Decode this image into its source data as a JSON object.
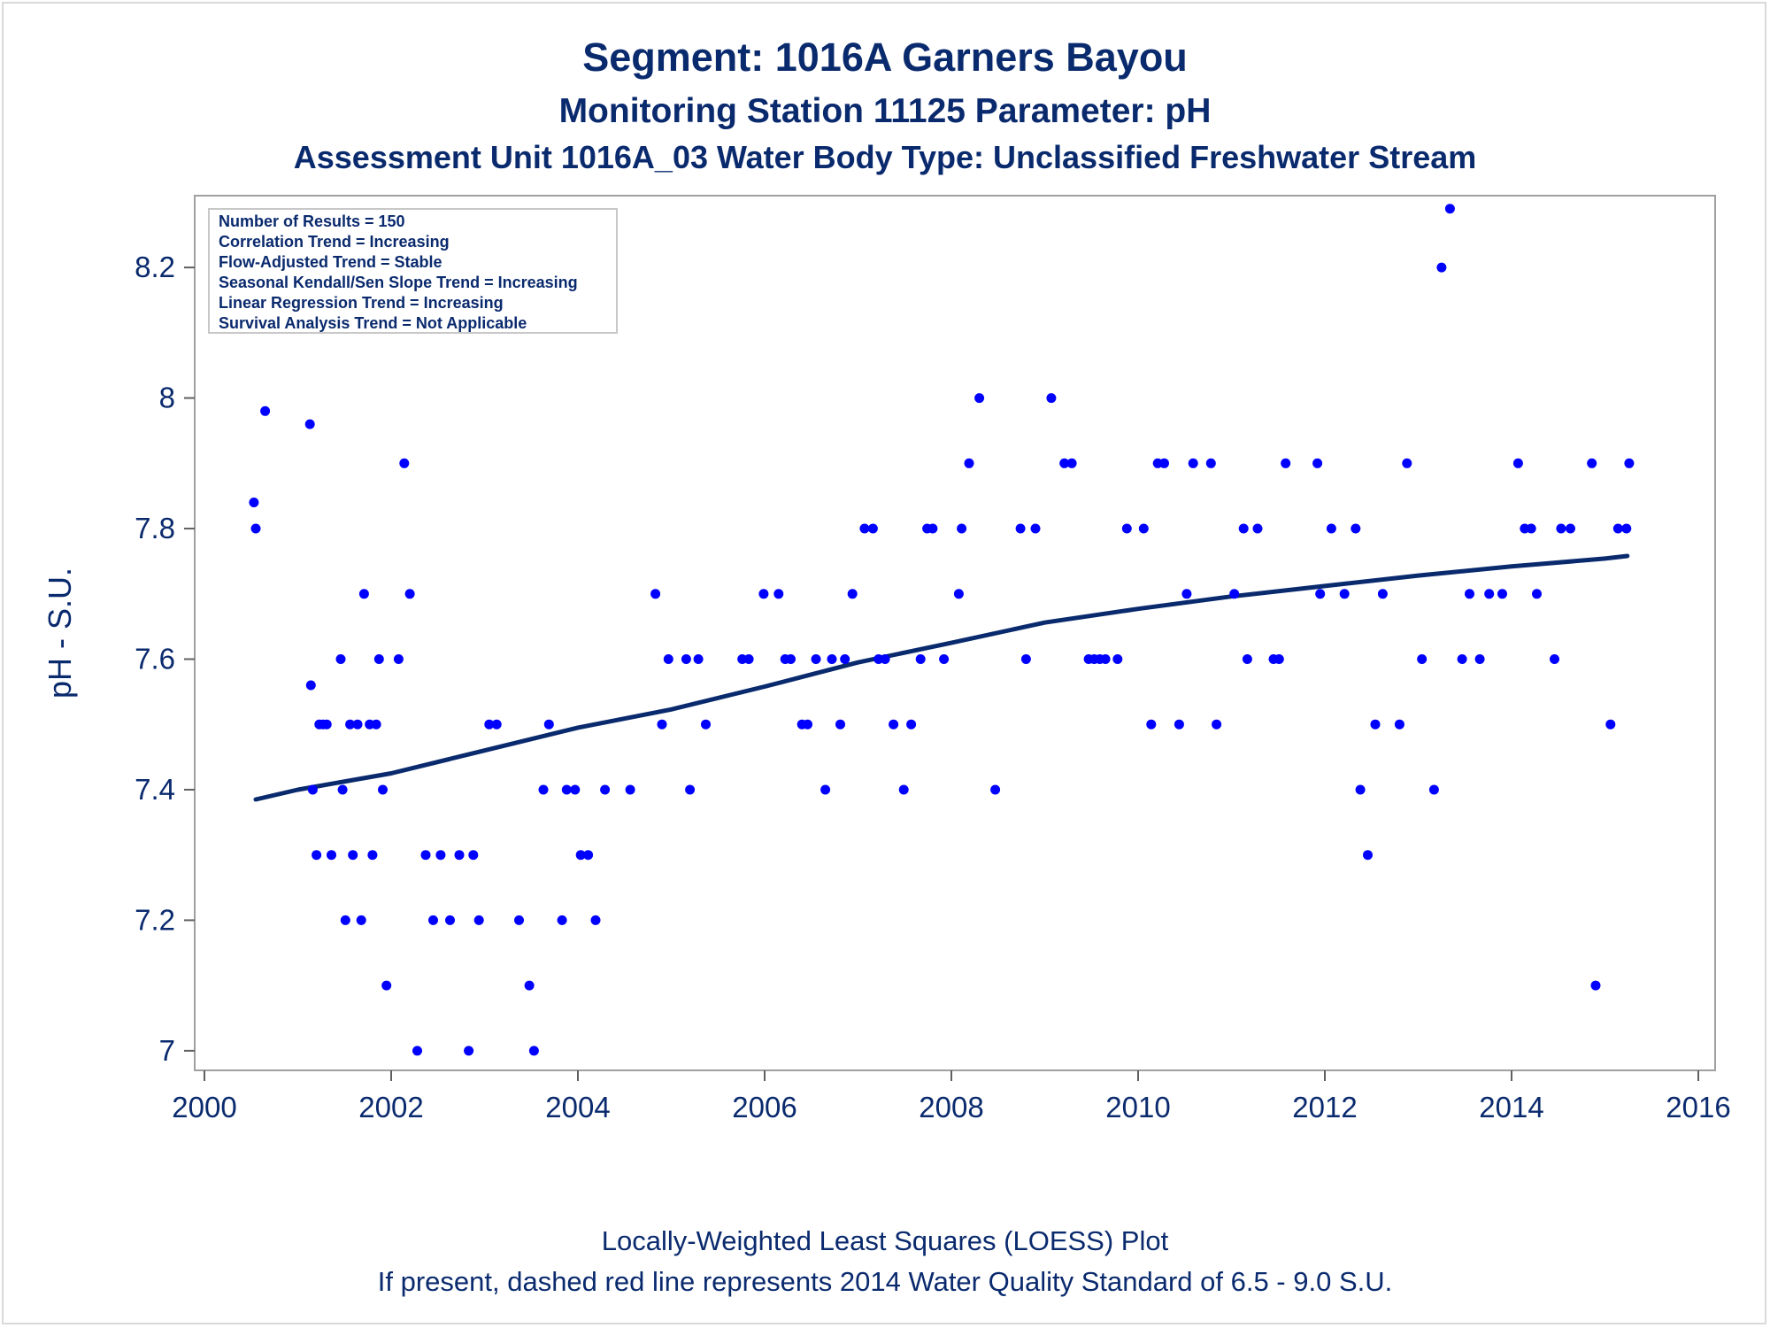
{
  "chart_data": {
    "type": "scatter",
    "title": "Segment: 1016A  Garners Bayou",
    "subtitle": "Monitoring Station 11125 Parameter: pH",
    "subtitle2": "Assessment Unit 1016A_03   Water Body Type: Unclassified Freshwater Stream",
    "xlabel": "",
    "ylabel": "pH - S.U.",
    "xlim": [
      2000,
      2016
    ],
    "ylim": [
      6.97,
      8.31
    ],
    "x_ticks": [
      2000,
      2002,
      2004,
      2006,
      2008,
      2010,
      2012,
      2014,
      2016
    ],
    "y_ticks": [
      7,
      7.2,
      7.4,
      7.6,
      7.8,
      8,
      8.2
    ],
    "x_tick_labels": [
      "2000",
      "2002",
      "2004",
      "2006",
      "2008",
      "2010",
      "2012",
      "2014",
      "2016"
    ],
    "y_tick_labels": [
      "7",
      "7.2",
      "7.4",
      "7.6",
      "7.8",
      "8",
      "8.2"
    ],
    "grid": false,
    "legend": "none",
    "point_color": "#0000ff",
    "line_color": "#0a2a6e",
    "stats_box": [
      "Number of Results = 150",
      "Correlation Trend = Increasing",
      "Flow-Adjusted Trend = Stable",
      "Seasonal Kendall/Sen Slope Trend = Increasing",
      "Linear Regression Trend = Increasing",
      "Survival Analysis Trend = Not Applicable"
    ],
    "footnote1": "Locally-Weighted Least Squares (LOESS) Plot",
    "footnote2": "If present, dashed red line represents 2014 Water Quality Standard of 6.5 - 9.0 S.U.",
    "series": [
      {
        "type": "scatter",
        "points": [
          [
            2000.53,
            7.84
          ],
          [
            2000.55,
            7.8
          ],
          [
            2000.65,
            7.98
          ],
          [
            2001.13,
            7.96
          ],
          [
            2001.14,
            7.56
          ],
          [
            2001.16,
            7.4
          ],
          [
            2001.2,
            7.3
          ],
          [
            2001.23,
            7.5
          ],
          [
            2001.27,
            7.5
          ],
          [
            2001.31,
            7.5
          ],
          [
            2001.36,
            7.3
          ],
          [
            2001.46,
            7.6
          ],
          [
            2001.48,
            7.4
          ],
          [
            2001.51,
            7.2
          ],
          [
            2001.56,
            7.5
          ],
          [
            2001.59,
            7.3
          ],
          [
            2001.64,
            7.5
          ],
          [
            2001.68,
            7.2
          ],
          [
            2001.71,
            7.7
          ],
          [
            2001.77,
            7.5
          ],
          [
            2001.8,
            7.3
          ],
          [
            2001.84,
            7.5
          ],
          [
            2001.87,
            7.6
          ],
          [
            2001.91,
            7.4
          ],
          [
            2001.95,
            7.1
          ],
          [
            2002.08,
            7.6
          ],
          [
            2002.14,
            7.9
          ],
          [
            2002.2,
            7.7
          ],
          [
            2002.28,
            7.0
          ],
          [
            2002.37,
            7.3
          ],
          [
            2002.45,
            7.2
          ],
          [
            2002.53,
            7.3
          ],
          [
            2002.63,
            7.2
          ],
          [
            2002.73,
            7.3
          ],
          [
            2002.83,
            7.0
          ],
          [
            2002.88,
            7.3
          ],
          [
            2002.94,
            7.2
          ],
          [
            2003.05,
            7.5
          ],
          [
            2003.13,
            7.5
          ],
          [
            2003.37,
            7.2
          ],
          [
            2003.48,
            7.1
          ],
          [
            2003.53,
            7.0
          ],
          [
            2003.63,
            7.4
          ],
          [
            2003.69,
            7.5
          ],
          [
            2003.83,
            7.2
          ],
          [
            2003.88,
            7.4
          ],
          [
            2003.97,
            7.4
          ],
          [
            2004.03,
            7.3
          ],
          [
            2004.11,
            7.3
          ],
          [
            2004.19,
            7.2
          ],
          [
            2004.29,
            7.4
          ],
          [
            2004.56,
            7.4
          ],
          [
            2004.83,
            7.7
          ],
          [
            2004.9,
            7.5
          ],
          [
            2004.97,
            7.6
          ],
          [
            2005.16,
            7.6
          ],
          [
            2005.2,
            7.4
          ],
          [
            2005.29,
            7.6
          ],
          [
            2005.37,
            7.5
          ],
          [
            2005.76,
            7.6
          ],
          [
            2005.83,
            7.6
          ],
          [
            2005.99,
            7.7
          ],
          [
            2006.15,
            7.7
          ],
          [
            2006.22,
            7.6
          ],
          [
            2006.28,
            7.6
          ],
          [
            2006.4,
            7.5
          ],
          [
            2006.46,
            7.5
          ],
          [
            2006.55,
            7.6
          ],
          [
            2006.65,
            7.4
          ],
          [
            2006.72,
            7.6
          ],
          [
            2006.81,
            7.5
          ],
          [
            2006.86,
            7.6
          ],
          [
            2006.94,
            7.7
          ],
          [
            2007.07,
            7.8
          ],
          [
            2007.16,
            7.8
          ],
          [
            2007.22,
            7.6
          ],
          [
            2007.29,
            7.6
          ],
          [
            2007.38,
            7.5
          ],
          [
            2007.49,
            7.4
          ],
          [
            2007.57,
            7.5
          ],
          [
            2007.67,
            7.6
          ],
          [
            2007.74,
            7.8
          ],
          [
            2007.8,
            7.8
          ],
          [
            2007.92,
            7.6
          ],
          [
            2008.08,
            7.7
          ],
          [
            2008.11,
            7.8
          ],
          [
            2008.19,
            7.9
          ],
          [
            2008.3,
            8.0
          ],
          [
            2008.47,
            7.4
          ],
          [
            2008.74,
            7.8
          ],
          [
            2008.8,
            7.6
          ],
          [
            2008.9,
            7.8
          ],
          [
            2009.07,
            8.0
          ],
          [
            2009.21,
            7.9
          ],
          [
            2009.29,
            7.9
          ],
          [
            2009.47,
            7.6
          ],
          [
            2009.53,
            7.6
          ],
          [
            2009.59,
            7.6
          ],
          [
            2009.65,
            7.6
          ],
          [
            2009.78,
            7.6
          ],
          [
            2009.88,
            7.8
          ],
          [
            2010.06,
            7.8
          ],
          [
            2010.14,
            7.5
          ],
          [
            2010.21,
            7.9
          ],
          [
            2010.28,
            7.9
          ],
          [
            2010.44,
            7.5
          ],
          [
            2010.52,
            7.7
          ],
          [
            2010.59,
            7.9
          ],
          [
            2010.78,
            7.9
          ],
          [
            2010.84,
            7.5
          ],
          [
            2011.03,
            7.7
          ],
          [
            2011.13,
            7.8
          ],
          [
            2011.17,
            7.6
          ],
          [
            2011.28,
            7.8
          ],
          [
            2011.45,
            7.6
          ],
          [
            2011.51,
            7.6
          ],
          [
            2011.58,
            7.9
          ],
          [
            2011.92,
            7.9
          ],
          [
            2011.95,
            7.7
          ],
          [
            2012.07,
            7.8
          ],
          [
            2012.21,
            7.7
          ],
          [
            2012.33,
            7.8
          ],
          [
            2012.38,
            7.4
          ],
          [
            2012.46,
            7.3
          ],
          [
            2012.54,
            7.5
          ],
          [
            2012.62,
            7.7
          ],
          [
            2012.8,
            7.5
          ],
          [
            2012.88,
            7.9
          ],
          [
            2013.04,
            7.6
          ],
          [
            2013.17,
            7.4
          ],
          [
            2013.25,
            8.2
          ],
          [
            2013.34,
            8.29
          ],
          [
            2013.47,
            7.6
          ],
          [
            2013.55,
            7.7
          ],
          [
            2013.66,
            7.6
          ],
          [
            2013.76,
            7.7
          ],
          [
            2013.9,
            7.7
          ],
          [
            2014.07,
            7.9
          ],
          [
            2014.14,
            7.8
          ],
          [
            2014.21,
            7.8
          ],
          [
            2014.27,
            7.7
          ],
          [
            2014.46,
            7.6
          ],
          [
            2014.53,
            7.8
          ],
          [
            2014.63,
            7.8
          ],
          [
            2014.86,
            7.9
          ],
          [
            2014.9,
            7.1
          ],
          [
            2015.06,
            7.5
          ],
          [
            2015.14,
            7.8
          ],
          [
            2015.23,
            7.8
          ],
          [
            2015.26,
            7.9
          ]
        ]
      },
      {
        "type": "line",
        "points": [
          [
            2000.55,
            7.385
          ],
          [
            2001.0,
            7.4
          ],
          [
            2002.0,
            7.425
          ],
          [
            2003.0,
            7.46
          ],
          [
            2004.0,
            7.495
          ],
          [
            2005.0,
            7.523
          ],
          [
            2006.0,
            7.558
          ],
          [
            2007.0,
            7.595
          ],
          [
            2008.0,
            7.625
          ],
          [
            2009.0,
            7.656
          ],
          [
            2010.0,
            7.677
          ],
          [
            2011.0,
            7.696
          ],
          [
            2012.0,
            7.712
          ],
          [
            2013.0,
            7.728
          ],
          [
            2014.0,
            7.742
          ],
          [
            2015.0,
            7.754
          ],
          [
            2015.24,
            7.758
          ]
        ]
      }
    ]
  }
}
